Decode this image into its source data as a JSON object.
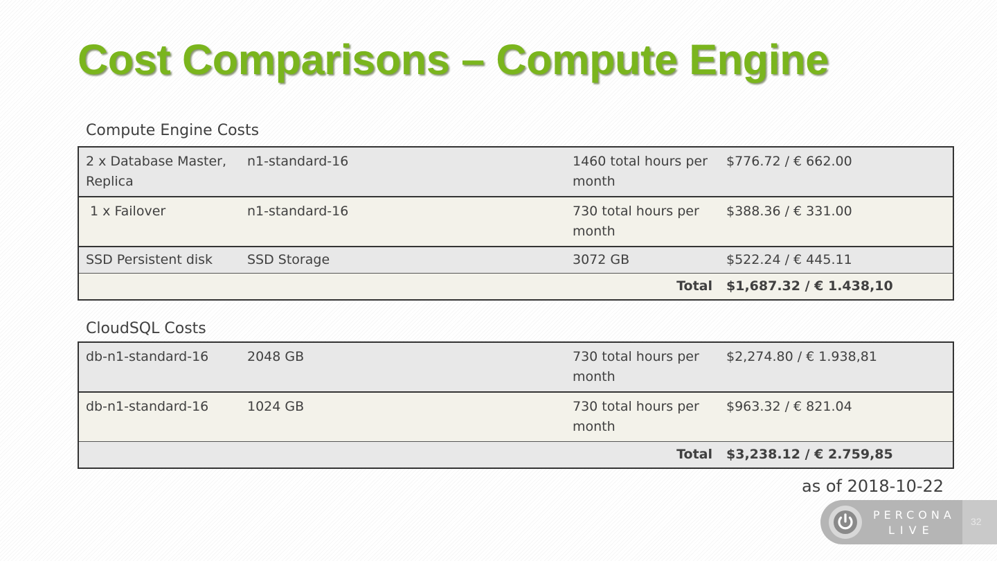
{
  "slide": {
    "title": "Cost Comparisons – Compute Engine",
    "as_of": "as of 2018-10-22",
    "page_number": "32"
  },
  "compute_engine": {
    "label": "Compute Engine Costs",
    "rows": [
      {
        "item": "2 x Database Master, Replica",
        "type": "n1-standard-16",
        "usage": "1460 total hours per month",
        "cost": "$776.72 / € 662.00"
      },
      {
        "item": " 1 x Failover",
        "type": "n1-standard-16",
        "usage": "730 total hours per month",
        "cost": "$388.36 / € 331.00"
      },
      {
        "item": "SSD Persistent disk",
        "type": "SSD Storage",
        "usage": "3072 GB",
        "cost": "$522.24 / € 445.11"
      }
    ],
    "total_label": "Total",
    "total_value": "$1,687.32 / € 1.438,10"
  },
  "cloudsql": {
    "label": "CloudSQL Costs",
    "rows": [
      {
        "item": "db-n1-standard-16",
        "type": "2048 GB",
        "usage": "730 total hours per month",
        "cost": "$2,274.80 / € 1.938,81"
      },
      {
        "item": "db-n1-standard-16",
        "type": "1024 GB",
        "usage": "730 total hours per month",
        "cost": "$963.32 / € 821.04"
      }
    ],
    "total_label": "Total",
    "total_value": "$3,238.12 / € 2.759,85"
  },
  "logo": {
    "line1": "PERCONA",
    "line2": "LIVE",
    "icon": "power-icon"
  },
  "colors": {
    "title": "#7ab51d",
    "row_gray": "#e8e8e8",
    "row_cream": "#f3f2ea",
    "text": "#404040"
  }
}
